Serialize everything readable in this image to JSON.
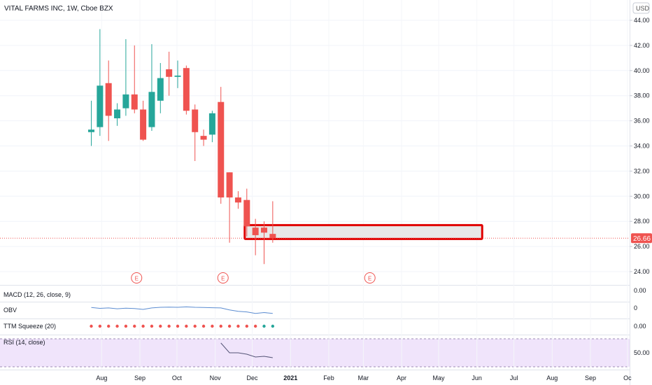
{
  "symbol_title": "VITAL FARMS INC, 1W, Cboe BZX",
  "currency": "USD",
  "last_price": "26.66",
  "colors": {
    "up": "#26a69a",
    "down": "#ef5350",
    "price_line": "#ef5350",
    "obv_line": "#5b8cd1",
    "rsi_line": "#555577",
    "rsi_band": "#f0e4fb",
    "highlight_border": "#e00000",
    "highlight_fill": "#e8e8e8",
    "squeeze_red": "#ef5350",
    "squeeze_teal": "#26a69a"
  },
  "price_axis_ticks": [
    "44.00",
    "42.00",
    "40.00",
    "38.00",
    "36.00",
    "34.00",
    "32.00",
    "30.00",
    "28.00",
    "26.00",
    "24.00"
  ],
  "time_axis_labels": [
    "Aug",
    "Sep",
    "Oct",
    "Nov",
    "Dec",
    "2021",
    "Feb",
    "Mar",
    "Apr",
    "May",
    "Jun",
    "Jul",
    "Aug",
    "Sep",
    "Oc"
  ],
  "earnings_marker_label": "E",
  "indicators": {
    "macd": {
      "label": "MACD (12, 26, close, 9)",
      "axis_tick": "0.00"
    },
    "obv": {
      "label": "OBV",
      "axis_tick": "0"
    },
    "ttm": {
      "label": "TTM Squeeze (20)",
      "axis_tick": "0.00"
    },
    "rsi": {
      "label": "RSI (14, close)",
      "axis_tick": "50.00"
    }
  },
  "chart_data": {
    "type": "candlestick",
    "title": "VITAL FARMS INC, 1W, Cboe BZX",
    "y_unit": "USD",
    "ylim": [
      23,
      45
    ],
    "candles": [
      {
        "week": "2020-07-27",
        "open": 35.1,
        "high": 37.6,
        "low": 34.0,
        "close": 35.3
      },
      {
        "week": "2020-08-03",
        "open": 35.5,
        "high": 43.3,
        "low": 34.8,
        "close": 38.8
      },
      {
        "week": "2020-08-10",
        "open": 39.0,
        "high": 40.8,
        "low": 34.4,
        "close": 36.4
      },
      {
        "week": "2020-08-17",
        "open": 36.2,
        "high": 37.4,
        "low": 35.6,
        "close": 36.9
      },
      {
        "week": "2020-08-24",
        "open": 37.0,
        "high": 42.5,
        "low": 36.4,
        "close": 38.1
      },
      {
        "week": "2020-08-31",
        "open": 38.1,
        "high": 42.0,
        "low": 36.6,
        "close": 36.9
      },
      {
        "week": "2020-09-07",
        "open": 36.9,
        "high": 37.6,
        "low": 34.4,
        "close": 34.5
      },
      {
        "week": "2020-09-14",
        "open": 35.5,
        "high": 42.1,
        "low": 35.2,
        "close": 38.3
      },
      {
        "week": "2020-09-21",
        "open": 37.6,
        "high": 40.6,
        "low": 36.6,
        "close": 39.4
      },
      {
        "week": "2020-09-28",
        "open": 40.1,
        "high": 41.5,
        "low": 38.0,
        "close": 39.5
      },
      {
        "week": "2020-10-05",
        "open": 39.5,
        "high": 40.8,
        "low": 38.6,
        "close": 39.6
      },
      {
        "week": "2020-10-12",
        "open": 40.2,
        "high": 40.4,
        "low": 36.5,
        "close": 36.8
      },
      {
        "week": "2020-10-19",
        "open": 36.9,
        "high": 37.3,
        "low": 32.8,
        "close": 35.1
      },
      {
        "week": "2020-10-26",
        "open": 34.8,
        "high": 35.3,
        "low": 34.0,
        "close": 34.5
      },
      {
        "week": "2020-11-02",
        "open": 34.9,
        "high": 36.8,
        "low": 34.3,
        "close": 36.6
      },
      {
        "week": "2020-11-09",
        "open": 37.5,
        "high": 38.7,
        "low": 29.4,
        "close": 29.9
      },
      {
        "week": "2020-11-16",
        "open": 31.9,
        "high": 31.9,
        "low": 26.3,
        "close": 29.9
      },
      {
        "week": "2020-11-23",
        "open": 29.9,
        "high": 30.4,
        "low": 29.0,
        "close": 29.5
      },
      {
        "week": "2020-11-30",
        "open": 29.7,
        "high": 30.6,
        "low": 26.8,
        "close": 27.6
      },
      {
        "week": "2020-12-07",
        "open": 27.5,
        "high": 28.2,
        "low": 25.3,
        "close": 26.9
      },
      {
        "week": "2020-12-14",
        "open": 27.5,
        "high": 28.0,
        "low": 24.6,
        "close": 27.1
      },
      {
        "week": "2020-12-21",
        "open": 27.0,
        "high": 29.6,
        "low": 26.3,
        "close": 26.66
      }
    ],
    "highlight_zone": {
      "from_week": "2020-11-30",
      "to_week": "2021-06-07",
      "low": 26.6,
      "high": 27.7
    },
    "earnings_dates": [
      "2020-08-31",
      "2020-11-09",
      "2021-03-08"
    ],
    "obv": [
      0.78,
      0.7,
      0.74,
      0.66,
      0.72,
      0.68,
      0.6,
      0.74,
      0.8,
      0.82,
      0.8,
      0.84,
      0.8,
      0.78,
      0.76,
      0.74,
      0.55,
      0.42,
      0.36,
      0.22,
      0.3,
      0.22
    ],
    "ttm_squeeze_dots": [
      "red",
      "red",
      "red",
      "red",
      "red",
      "red",
      "red",
      "red",
      "red",
      "red",
      "red",
      "red",
      "red",
      "red",
      "red",
      "red",
      "red",
      "red",
      "red",
      "red",
      "teal",
      "teal"
    ],
    "rsi": [
      {
        "week": "2020-11-09",
        "value": 64
      },
      {
        "week": "2020-11-16",
        "value": 50
      },
      {
        "week": "2020-11-23",
        "value": 50
      },
      {
        "week": "2020-11-30",
        "value": 48
      },
      {
        "week": "2020-12-07",
        "value": 44
      },
      {
        "week": "2020-12-14",
        "value": 45
      },
      {
        "week": "2020-12-21",
        "value": 43
      }
    ],
    "rsi_band": [
      30,
      70
    ]
  }
}
